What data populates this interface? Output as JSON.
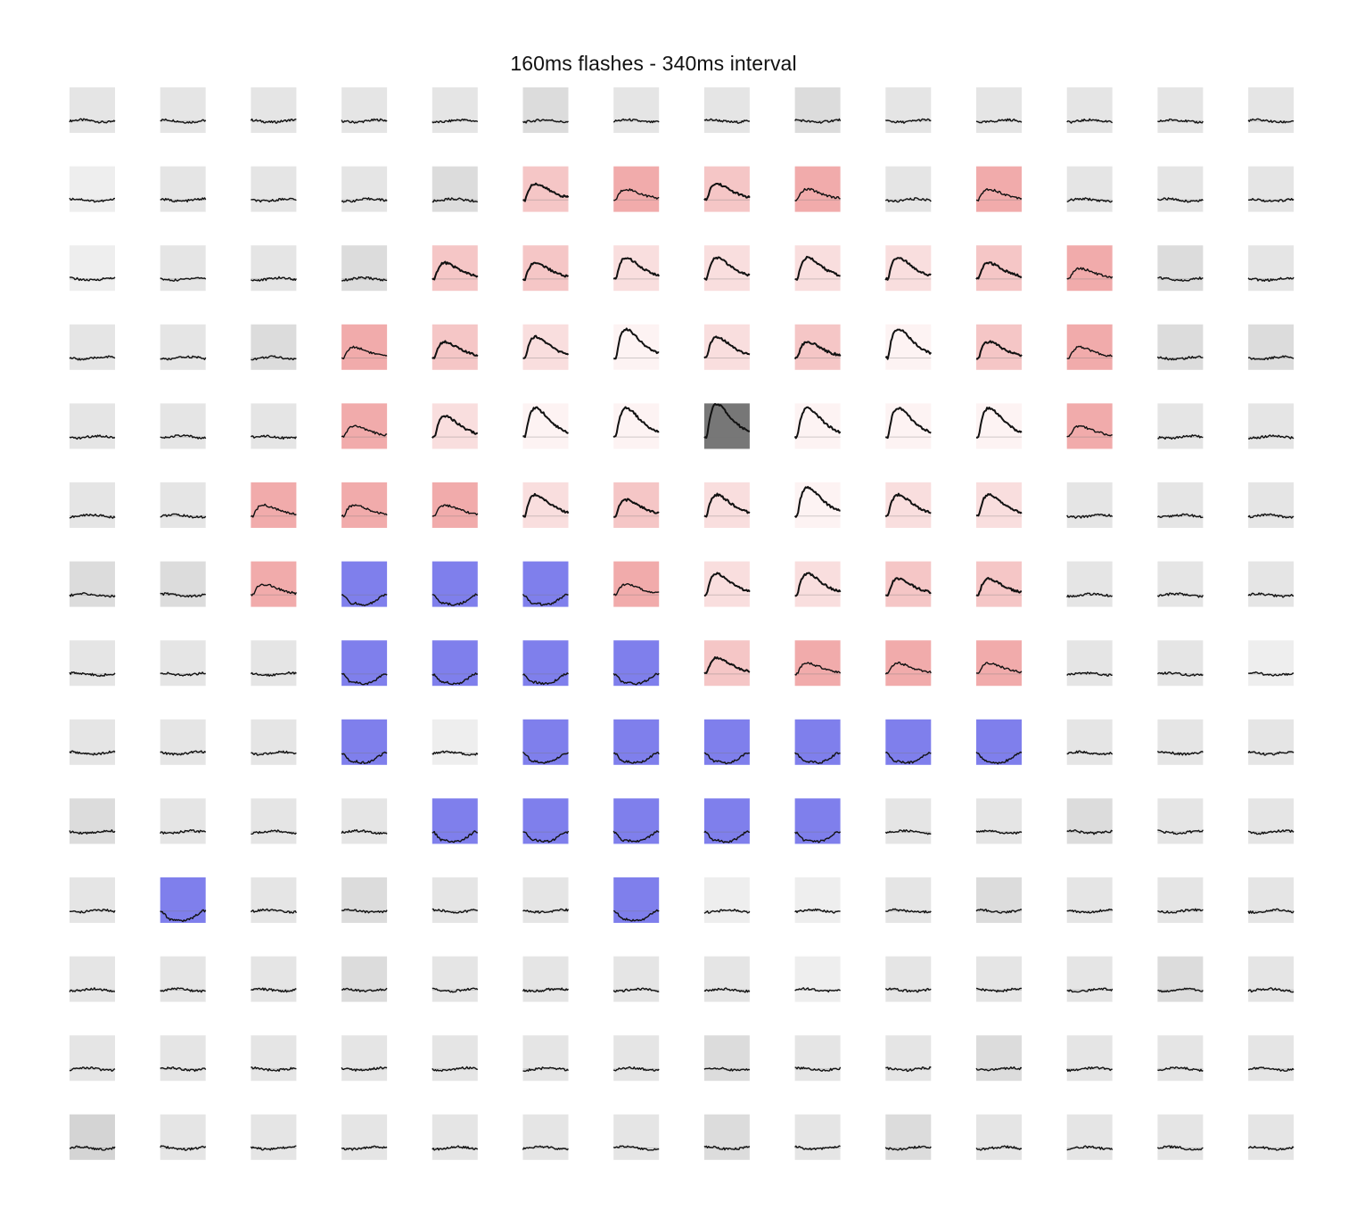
{
  "chart_data": {
    "type": "heatmap",
    "title": "160ms flashes - 340ms interval",
    "rows": 14,
    "cols": 14,
    "cell_content": "trace",
    "colors": {
      "neutral_tint": "#e4e4e4",
      "positive_tint": "#f2a9a9",
      "negative_tint": "#7d7de8",
      "max_cell": "#777777",
      "trace": "#111111"
    },
    "cells": [
      [
        "n1",
        "n1",
        "n1",
        "n1",
        "n1",
        "n2",
        "n1",
        "n1",
        "n2",
        "n1",
        "n1",
        "n1",
        "n1",
        "n1"
      ],
      [
        "n0",
        "n1",
        "n1",
        "n1",
        "n2",
        "r2",
        "r3",
        "r2",
        "r3",
        "n1",
        "r3",
        "n1",
        "n1",
        "n1"
      ],
      [
        "n0",
        "n1",
        "n1",
        "n2",
        "r2",
        "r2",
        "r1",
        "r1",
        "r1",
        "r1",
        "r2",
        "r3",
        "n2",
        "n1"
      ],
      [
        "n1",
        "n1",
        "n2",
        "r3",
        "r2",
        "r1",
        "w",
        "r1",
        "r2",
        "w",
        "r2",
        "r3",
        "n2",
        "n2"
      ],
      [
        "n1",
        "n1",
        "n1",
        "r3",
        "r1",
        "w",
        "w",
        "max",
        "w",
        "w",
        "w",
        "r3",
        "n1",
        "n1"
      ],
      [
        "n1",
        "n1",
        "r3",
        "r3",
        "r3",
        "r1",
        "r2",
        "r1",
        "w",
        "r1",
        "r1",
        "n1",
        "n1",
        "n1"
      ],
      [
        "n2",
        "n2",
        "r3",
        "b",
        "b",
        "b",
        "r3",
        "r1",
        "r1",
        "r2",
        "r2",
        "n1",
        "n1",
        "n1"
      ],
      [
        "n1",
        "n1",
        "n1",
        "b",
        "b",
        "b",
        "b",
        "r2",
        "r3",
        "r3",
        "r3",
        "n1",
        "n1",
        "n0"
      ],
      [
        "n1",
        "n1",
        "n1",
        "b",
        "n0",
        "b",
        "b",
        "b",
        "b",
        "b",
        "b",
        "n1",
        "n1",
        "n1"
      ],
      [
        "n2",
        "n1",
        "n1",
        "n1",
        "b",
        "b",
        "b",
        "b",
        "b",
        "n1",
        "n1",
        "n2",
        "n1",
        "n1"
      ],
      [
        "n1",
        "b",
        "n1",
        "n2",
        "n1",
        "n1",
        "b",
        "n0",
        "n0",
        "n1",
        "n2",
        "n1",
        "n1",
        "n1"
      ],
      [
        "n1",
        "n1",
        "n1",
        "n2",
        "n1",
        "n1",
        "n1",
        "n1",
        "n0",
        "n1",
        "n1",
        "n1",
        "n2",
        "n1"
      ],
      [
        "n1",
        "n1",
        "n1",
        "n1",
        "n1",
        "n1",
        "n1",
        "n2",
        "n1",
        "n1",
        "n2",
        "n1",
        "n1",
        "n1"
      ],
      [
        "n3",
        "n1",
        "n1",
        "n1",
        "n1",
        "n1",
        "n1",
        "n2",
        "n1",
        "n2",
        "n1",
        "n1",
        "n1",
        "n1"
      ]
    ]
  }
}
